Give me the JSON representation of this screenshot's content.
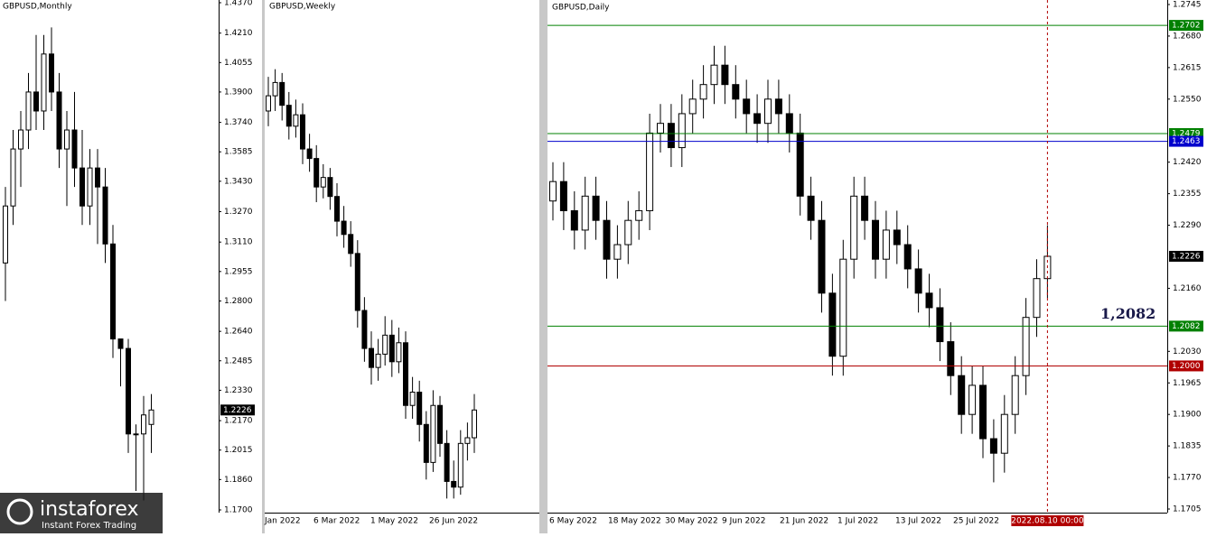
{
  "monthly": {
    "title": "GBPUSD,Monthly",
    "ylim": [
      1.17,
      1.437
    ],
    "yticks": [
      {
        "value": 1.437,
        "label": "1.4370"
      },
      {
        "value": 1.421,
        "label": "1.4210"
      },
      {
        "value": 1.4055,
        "label": "1.4055"
      },
      {
        "value": 1.39,
        "label": "1.3900"
      },
      {
        "value": 1.374,
        "label": "1.3740"
      },
      {
        "value": 1.3585,
        "label": "1.3585"
      },
      {
        "value": 1.343,
        "label": "1.3430"
      },
      {
        "value": 1.327,
        "label": "1.3270"
      },
      {
        "value": 1.311,
        "label": "1.3110"
      },
      {
        "value": 1.2955,
        "label": "1.2955"
      },
      {
        "value": 1.28,
        "label": "1.2800"
      },
      {
        "value": 1.264,
        "label": "1.2640"
      },
      {
        "value": 1.2485,
        "label": "1.2485"
      },
      {
        "value": 1.233,
        "label": "1.2330"
      },
      {
        "value": 1.217,
        "label": "1.2170"
      },
      {
        "value": 1.2015,
        "label": "1.2015"
      },
      {
        "value": 1.186,
        "label": "1.1860"
      },
      {
        "value": 1.17,
        "label": "1.1700"
      }
    ],
    "price_label": {
      "value": 1.2226,
      "label": "1.2226"
    },
    "candles": [
      [
        1.3,
        1.34,
        1.28,
        1.33
      ],
      [
        1.33,
        1.37,
        1.32,
        1.36
      ],
      [
        1.36,
        1.38,
        1.34,
        1.37
      ],
      [
        1.37,
        1.4,
        1.36,
        1.39
      ],
      [
        1.39,
        1.42,
        1.37,
        1.38
      ],
      [
        1.38,
        1.42,
        1.37,
        1.41
      ],
      [
        1.41,
        1.424,
        1.38,
        1.39
      ],
      [
        1.39,
        1.4,
        1.35,
        1.36
      ],
      [
        1.36,
        1.38,
        1.33,
        1.37
      ],
      [
        1.37,
        1.39,
        1.34,
        1.35
      ],
      [
        1.35,
        1.37,
        1.32,
        1.33
      ],
      [
        1.33,
        1.36,
        1.32,
        1.35
      ],
      [
        1.35,
        1.36,
        1.31,
        1.34
      ],
      [
        1.34,
        1.35,
        1.3,
        1.31
      ],
      [
        1.31,
        1.32,
        1.25,
        1.26
      ],
      [
        1.26,
        1.26,
        1.235,
        1.255
      ],
      [
        1.255,
        1.26,
        1.2,
        1.21
      ],
      [
        1.21,
        1.215,
        1.18,
        1.21
      ],
      [
        1.21,
        1.23,
        1.175,
        1.22
      ],
      [
        1.215,
        1.231,
        1.2,
        1.2226
      ]
    ]
  },
  "weekly": {
    "title": "GBPUSD,Weekly",
    "ylim": [
      1.17,
      1.437
    ],
    "xticks": [
      "Jan 2022",
      "6 Mar 2022",
      "1 May 2022",
      "26 Jun 2022"
    ],
    "candles": [
      [
        1.38,
        1.398,
        1.372,
        1.388
      ],
      [
        1.388,
        1.402,
        1.38,
        1.395
      ],
      [
        1.395,
        1.4,
        1.375,
        1.383
      ],
      [
        1.383,
        1.39,
        1.365,
        1.372
      ],
      [
        1.372,
        1.386,
        1.366,
        1.378
      ],
      [
        1.378,
        1.384,
        1.352,
        1.36
      ],
      [
        1.36,
        1.368,
        1.348,
        1.355
      ],
      [
        1.355,
        1.362,
        1.332,
        1.34
      ],
      [
        1.34,
        1.352,
        1.334,
        1.345
      ],
      [
        1.345,
        1.35,
        1.328,
        1.335
      ],
      [
        1.335,
        1.342,
        1.314,
        1.322
      ],
      [
        1.322,
        1.33,
        1.308,
        1.315
      ],
      [
        1.315,
        1.322,
        1.298,
        1.305
      ],
      [
        1.305,
        1.312,
        1.266,
        1.275
      ],
      [
        1.275,
        1.282,
        1.248,
        1.255
      ],
      [
        1.255,
        1.264,
        1.236,
        1.245
      ],
      [
        1.245,
        1.26,
        1.238,
        1.252
      ],
      [
        1.252,
        1.272,
        1.246,
        1.262
      ],
      [
        1.262,
        1.27,
        1.24,
        1.248
      ],
      [
        1.248,
        1.266,
        1.242,
        1.258
      ],
      [
        1.258,
        1.264,
        1.218,
        1.225
      ],
      [
        1.225,
        1.24,
        1.218,
        1.232
      ],
      [
        1.232,
        1.238,
        1.206,
        1.215
      ],
      [
        1.215,
        1.222,
        1.186,
        1.195
      ],
      [
        1.195,
        1.233,
        1.19,
        1.225
      ],
      [
        1.225,
        1.23,
        1.198,
        1.205
      ],
      [
        1.205,
        1.212,
        1.176,
        1.185
      ],
      [
        1.185,
        1.196,
        1.176,
        1.182
      ],
      [
        1.182,
        1.212,
        1.178,
        1.205
      ],
      [
        1.205,
        1.216,
        1.196,
        1.208
      ],
      [
        1.208,
        1.231,
        1.2,
        1.2226
      ]
    ]
  },
  "daily": {
    "title": "GBPUSD,Daily",
    "ylim": [
      1.1705,
      1.2745
    ],
    "yticks": [
      {
        "value": 1.2745,
        "label": "1.2745"
      },
      {
        "value": 1.268,
        "label": "1.2680"
      },
      {
        "value": 1.2615,
        "label": "1.2615"
      },
      {
        "value": 1.255,
        "label": "1.2550"
      },
      {
        "value": 1.242,
        "label": "1.2420"
      },
      {
        "value": 1.2355,
        "label": "1.2355"
      },
      {
        "value": 1.229,
        "label": "1.2290"
      },
      {
        "value": 1.216,
        "label": "1.2160"
      },
      {
        "value": 1.203,
        "label": "1.2030"
      },
      {
        "value": 1.1965,
        "label": "1.1965"
      },
      {
        "value": 1.19,
        "label": "1.1900"
      },
      {
        "value": 1.1835,
        "label": "1.1835"
      },
      {
        "value": 1.177,
        "label": "1.1770"
      },
      {
        "value": 1.1705,
        "label": "1.1705"
      }
    ],
    "xticks": [
      "6 May 2022",
      "18 May 2022",
      "30 May 2022",
      "9 Jun 2022",
      "21 Jun 2022",
      "1 Jul 2022",
      "13 Jul 2022",
      "25 Jul 2022"
    ],
    "date_marker": "2022.08.10 00:00",
    "levels": [
      {
        "value": 1.2702,
        "label": "1.2702",
        "color": "#008000"
      },
      {
        "value": 1.2479,
        "label": "1.2479",
        "color": "#008000"
      },
      {
        "value": 1.2463,
        "label": "1.2463",
        "color": "#0000cc"
      },
      {
        "value": 1.2226,
        "label": "1.2226",
        "color": "#000000"
      },
      {
        "value": 1.2082,
        "label": "1.2082",
        "color": "#008000"
      },
      {
        "value": 1.2,
        "label": "1.2000",
        "color": "#b00000"
      }
    ],
    "annotation": "1,2082",
    "candles": [
      [
        1.234,
        1.242,
        1.23,
        1.238
      ],
      [
        1.238,
        1.242,
        1.228,
        1.232
      ],
      [
        1.232,
        1.236,
        1.224,
        1.228
      ],
      [
        1.228,
        1.239,
        1.224,
        1.235
      ],
      [
        1.235,
        1.239,
        1.226,
        1.23
      ],
      [
        1.23,
        1.234,
        1.218,
        1.222
      ],
      [
        1.222,
        1.229,
        1.218,
        1.225
      ],
      [
        1.225,
        1.234,
        1.221,
        1.23
      ],
      [
        1.23,
        1.236,
        1.226,
        1.232
      ],
      [
        1.232,
        1.252,
        1.228,
        1.248
      ],
      [
        1.248,
        1.254,
        1.244,
        1.25
      ],
      [
        1.25,
        1.254,
        1.241,
        1.245
      ],
      [
        1.245,
        1.256,
        1.241,
        1.252
      ],
      [
        1.252,
        1.259,
        1.248,
        1.255
      ],
      [
        1.255,
        1.262,
        1.251,
        1.258
      ],
      [
        1.258,
        1.266,
        1.254,
        1.262
      ],
      [
        1.262,
        1.266,
        1.254,
        1.258
      ],
      [
        1.258,
        1.262,
        1.251,
        1.255
      ],
      [
        1.255,
        1.259,
        1.248,
        1.252
      ],
      [
        1.252,
        1.256,
        1.246,
        1.25
      ],
      [
        1.25,
        1.259,
        1.246,
        1.255
      ],
      [
        1.255,
        1.259,
        1.248,
        1.252
      ],
      [
        1.252,
        1.256,
        1.244,
        1.248
      ],
      [
        1.248,
        1.252,
        1.231,
        1.235
      ],
      [
        1.235,
        1.239,
        1.226,
        1.23
      ],
      [
        1.23,
        1.234,
        1.211,
        1.215
      ],
      [
        1.215,
        1.219,
        1.198,
        1.202
      ],
      [
        1.202,
        1.226,
        1.198,
        1.222
      ],
      [
        1.222,
        1.239,
        1.218,
        1.235
      ],
      [
        1.235,
        1.239,
        1.226,
        1.23
      ],
      [
        1.23,
        1.234,
        1.218,
        1.222
      ],
      [
        1.222,
        1.232,
        1.218,
        1.228
      ],
      [
        1.228,
        1.232,
        1.221,
        1.225
      ],
      [
        1.225,
        1.229,
        1.216,
        1.22
      ],
      [
        1.22,
        1.224,
        1.211,
        1.215
      ],
      [
        1.215,
        1.219,
        1.208,
        1.212
      ],
      [
        1.212,
        1.216,
        1.201,
        1.205
      ],
      [
        1.205,
        1.209,
        1.194,
        1.198
      ],
      [
        1.198,
        1.202,
        1.186,
        1.19
      ],
      [
        1.19,
        1.2,
        1.186,
        1.196
      ],
      [
        1.196,
        1.2,
        1.181,
        1.185
      ],
      [
        1.185,
        1.189,
        1.176,
        1.182
      ],
      [
        1.182,
        1.194,
        1.178,
        1.19
      ],
      [
        1.19,
        1.202,
        1.186,
        1.198
      ],
      [
        1.198,
        1.214,
        1.194,
        1.21
      ],
      [
        1.21,
        1.222,
        1.206,
        1.218
      ],
      [
        1.218,
        1.229,
        1.214,
        1.2226
      ]
    ]
  },
  "logo": {
    "name": "instaforex",
    "tagline": "Instant Forex Trading"
  }
}
